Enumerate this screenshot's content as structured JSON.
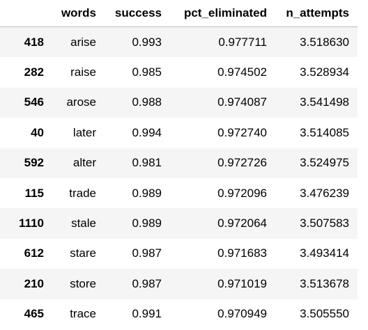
{
  "table": {
    "columns": [
      "",
      "words",
      "success",
      "pct_eliminated",
      "n_attempts"
    ],
    "rows": [
      {
        "index": "418",
        "words": "arise",
        "success": "0.993",
        "pct_eliminated": "0.977711",
        "n_attempts": "3.518630"
      },
      {
        "index": "282",
        "words": "raise",
        "success": "0.985",
        "pct_eliminated": "0.974502",
        "n_attempts": "3.528934"
      },
      {
        "index": "546",
        "words": "arose",
        "success": "0.988",
        "pct_eliminated": "0.974087",
        "n_attempts": "3.541498"
      },
      {
        "index": "40",
        "words": "later",
        "success": "0.994",
        "pct_eliminated": "0.972740",
        "n_attempts": "3.514085"
      },
      {
        "index": "592",
        "words": "alter",
        "success": "0.981",
        "pct_eliminated": "0.972726",
        "n_attempts": "3.524975"
      },
      {
        "index": "115",
        "words": "trade",
        "success": "0.989",
        "pct_eliminated": "0.972096",
        "n_attempts": "3.476239"
      },
      {
        "index": "1110",
        "words": "stale",
        "success": "0.989",
        "pct_eliminated": "0.972064",
        "n_attempts": "3.507583"
      },
      {
        "index": "612",
        "words": "stare",
        "success": "0.987",
        "pct_eliminated": "0.971683",
        "n_attempts": "3.493414"
      },
      {
        "index": "210",
        "words": "store",
        "success": "0.987",
        "pct_eliminated": "0.971019",
        "n_attempts": "3.513678"
      },
      {
        "index": "465",
        "words": "trace",
        "success": "0.991",
        "pct_eliminated": "0.970949",
        "n_attempts": "3.505550"
      }
    ]
  },
  "colors": {
    "stripe": "#f5f5f5",
    "header_rule": "#bdbdbd"
  }
}
